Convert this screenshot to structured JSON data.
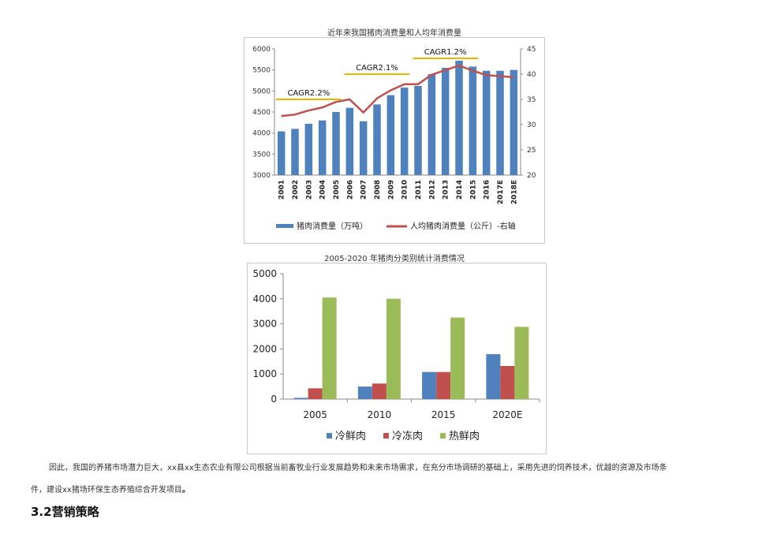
{
  "doc": {
    "paragraph_line1": "因此，我国的养猪市场潜力巨大，xx县xx生态农业有限公司根据当前畜牧业行业发展趋势和未来市场需求，在充分市场调研的基础上，采用先进的饲养技术，优越的资源及市场条",
    "paragraph_line2_plain": "件，建设xx猪场环保生态养殖综合开发项目",
    "paragraph_line2_bold": "。",
    "section_heading": "3.2营销策略"
  },
  "chart_data": [
    {
      "type": "bar+line",
      "title": "近年来我国猪肉消费量和人均年消费量",
      "categories": [
        "2001",
        "2002",
        "2003",
        "2004",
        "2005",
        "2006",
        "2007",
        "2008",
        "2009",
        "2010",
        "2011",
        "2012",
        "2013",
        "2014",
        "2015",
        "2016",
        "2017E",
        "2018E"
      ],
      "series": [
        {
          "name": "猪肉消费量（万吨）",
          "kind": "bar",
          "axis": "left",
          "color": "#4f81bd",
          "values": [
            4040,
            4100,
            4220,
            4300,
            4500,
            4600,
            4280,
            4680,
            4900,
            5080,
            5120,
            5400,
            5550,
            5720,
            5580,
            5480,
            5480,
            5500
          ]
        },
        {
          "name": "人均猪肉消费量（公斤）-右轴",
          "kind": "line",
          "axis": "right",
          "color": "#c0504d",
          "values": [
            31.7,
            32.0,
            32.8,
            33.4,
            34.5,
            35.0,
            32.4,
            35.2,
            36.8,
            38.0,
            38.0,
            39.9,
            40.8,
            41.7,
            40.7,
            39.8,
            39.6,
            39.4
          ]
        }
      ],
      "ylim_left": [
        3000,
        6000
      ],
      "yticks_left": [
        "3000",
        "3500",
        "4000",
        "4500",
        "5000",
        "5500",
        "6000"
      ],
      "ylim_right": [
        20,
        45
      ],
      "yticks_right": [
        "20",
        "25",
        "30",
        "35",
        "40",
        "45"
      ],
      "annotations": [
        {
          "text": "CAGR2.2%",
          "from": "2001",
          "to": "2005"
        },
        {
          "text": "CAGR2.1%",
          "from": "2006",
          "to": "2010"
        },
        {
          "text": "CAGR1.2%",
          "from": "2011",
          "to": "2015"
        }
      ],
      "legend": "bottom",
      "grid": false
    },
    {
      "type": "bar",
      "title": "2005-2020 年猪肉分类别统计消费情况",
      "categories": [
        "2005",
        "2010",
        "2015",
        "2020E"
      ],
      "series": [
        {
          "name": "冷鲜肉",
          "color": "#4f81bd",
          "values": [
            50,
            500,
            1080,
            1790
          ]
        },
        {
          "name": "冷冻肉",
          "color": "#c0504d",
          "values": [
            430,
            620,
            1080,
            1320
          ]
        },
        {
          "name": "热鲜肉",
          "color": "#9bbb59",
          "values": [
            4050,
            4000,
            3250,
            2880
          ]
        }
      ],
      "ylim": [
        0,
        5000
      ],
      "yticks": [
        "0",
        "1000",
        "2000",
        "3000",
        "4000",
        "5000"
      ],
      "legend": "bottom",
      "grid": false
    }
  ]
}
